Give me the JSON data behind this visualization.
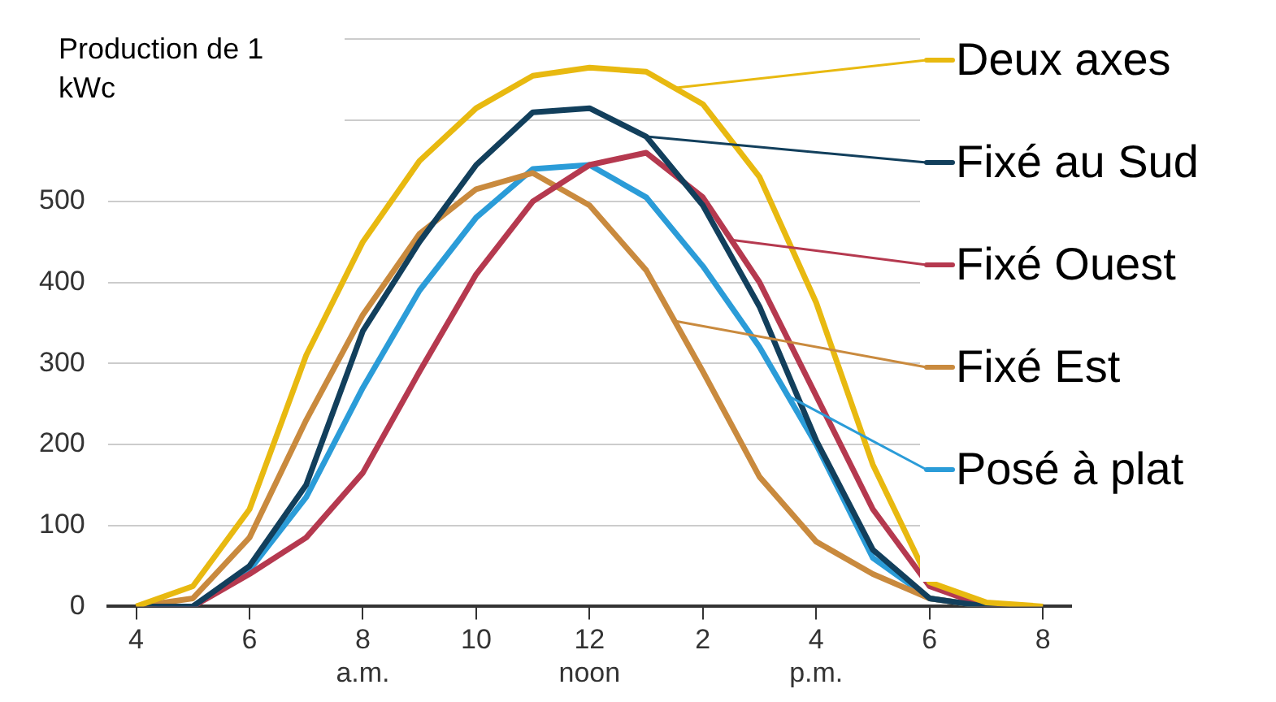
{
  "chart_data": {
    "type": "line",
    "ylabel": "Production de 1 kWc",
    "categories": [
      "4",
      null,
      "6",
      null,
      "8\na.m.",
      null,
      "10",
      null,
      "12\nnoon",
      null,
      "2",
      null,
      "4\np.m.",
      null,
      "6",
      null,
      "8"
    ],
    "series": [
      {
        "name": "Deux axes",
        "color": "#e8b910",
        "values": [
          0,
          25,
          120,
          310,
          450,
          550,
          615,
          655,
          665,
          660,
          620,
          530,
          375,
          175,
          30,
          5,
          0
        ]
      },
      {
        "name": "Fixé au Sud",
        "color": "#123f5c",
        "values": [
          0,
          0,
          50,
          150,
          340,
          450,
          545,
          610,
          615,
          580,
          495,
          370,
          205,
          70,
          10,
          0,
          0
        ]
      },
      {
        "name": "Fixé Ouest",
        "color": "#b5394f",
        "values": [
          0,
          0,
          40,
          85,
          165,
          290,
          410,
          500,
          545,
          560,
          505,
          400,
          260,
          120,
          25,
          0,
          0
        ]
      },
      {
        "name": "Fixé Est",
        "color": "#c98a3e",
        "values": [
          0,
          10,
          85,
          230,
          360,
          460,
          515,
          535,
          495,
          415,
          290,
          160,
          80,
          40,
          10,
          0,
          0
        ]
      },
      {
        "name": "Posé à plat",
        "color": "#2b9cd8",
        "values": [
          0,
          0,
          45,
          135,
          270,
          390,
          480,
          540,
          545,
          505,
          420,
          320,
          200,
          60,
          10,
          0,
          0
        ]
      }
    ],
    "ylim": [
      0,
      700
    ],
    "yticks": [
      0,
      100,
      200,
      300,
      400,
      500,
      {
        "value": 600,
        "label": null
      },
      {
        "value": 700,
        "label": null
      }
    ],
    "grid": "y",
    "legend": "right",
    "marker": "none",
    "line_style": "solid"
  }
}
